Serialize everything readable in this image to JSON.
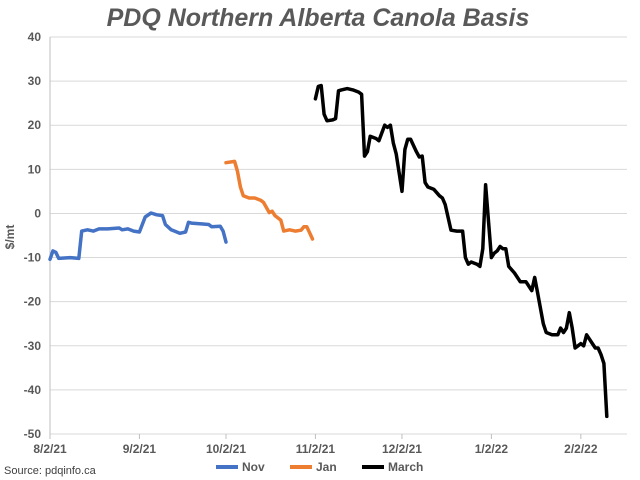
{
  "chart_data": {
    "type": "line",
    "title": "PDQ Northern Alberta Canola Basis",
    "ylabel": "$/mt",
    "xlabel": "",
    "ylim": [
      -50,
      40
    ],
    "yticks": [
      40,
      30,
      20,
      10,
      0,
      -10,
      -20,
      -30,
      -40,
      -50
    ],
    "xlim": [
      "2021-08-02",
      "2022-02-18"
    ],
    "xticks": [
      {
        "date": "2021-08-02",
        "label": "8/2/21"
      },
      {
        "date": "2021-09-02",
        "label": "9/2/21"
      },
      {
        "date": "2021-10-02",
        "label": "10/2/21"
      },
      {
        "date": "2021-11-02",
        "label": "11/2/21"
      },
      {
        "date": "2021-12-02",
        "label": "12/2/21"
      },
      {
        "date": "2022-01-02",
        "label": "1/2/22"
      },
      {
        "date": "2022-02-02",
        "label": "2/2/22"
      }
    ],
    "grid": true,
    "legend": "bottom",
    "source": "Source: pdqinfo.ca",
    "series": [
      {
        "name": "Nov",
        "color": "#4472c4",
        "points": [
          [
            "2021-08-02",
            -10.4
          ],
          [
            "2021-08-03",
            -8.5
          ],
          [
            "2021-08-04",
            -8.8
          ],
          [
            "2021-08-05",
            -10.2
          ],
          [
            "2021-08-09",
            -10.0
          ],
          [
            "2021-08-12",
            -10.2
          ],
          [
            "2021-08-13",
            -4.0
          ],
          [
            "2021-08-15",
            -3.7
          ],
          [
            "2021-08-17",
            -4.0
          ],
          [
            "2021-08-19",
            -3.5
          ],
          [
            "2021-08-22",
            -3.5
          ],
          [
            "2021-08-26",
            -3.3
          ],
          [
            "2021-08-27",
            -3.7
          ],
          [
            "2021-08-29",
            -3.5
          ],
          [
            "2021-08-31",
            -4.0
          ],
          [
            "2021-09-02",
            -4.2
          ],
          [
            "2021-09-04",
            -0.8
          ],
          [
            "2021-09-06",
            0.1
          ],
          [
            "2021-09-08",
            -0.3
          ],
          [
            "2021-09-10",
            -0.5
          ],
          [
            "2021-09-11",
            -2.5
          ],
          [
            "2021-09-13",
            -3.7
          ],
          [
            "2021-09-16",
            -4.5
          ],
          [
            "2021-09-18",
            -4.2
          ],
          [
            "2021-09-19",
            -2.0
          ],
          [
            "2021-09-20",
            -2.2
          ],
          [
            "2021-09-24",
            -2.4
          ],
          [
            "2021-09-26",
            -2.5
          ],
          [
            "2021-09-27",
            -3.0
          ],
          [
            "2021-09-30",
            -2.9
          ],
          [
            "2021-10-01",
            -4.0
          ],
          [
            "2021-10-02",
            -6.5
          ]
        ]
      },
      {
        "name": "Jan",
        "color": "#ed7d31",
        "points": [
          [
            "2021-10-02",
            11.5
          ],
          [
            "2021-10-05",
            11.8
          ],
          [
            "2021-10-06",
            9.5
          ],
          [
            "2021-10-07",
            6.0
          ],
          [
            "2021-10-08",
            4.0
          ],
          [
            "2021-10-10",
            3.5
          ],
          [
            "2021-10-12",
            3.5
          ],
          [
            "2021-10-14",
            3.0
          ],
          [
            "2021-10-15",
            2.5
          ],
          [
            "2021-10-17",
            0.2
          ],
          [
            "2021-10-18",
            0.5
          ],
          [
            "2021-10-19",
            -0.5
          ],
          [
            "2021-10-21",
            -1.5
          ],
          [
            "2021-10-22",
            -4.0
          ],
          [
            "2021-10-24",
            -3.7
          ],
          [
            "2021-10-26",
            -4.0
          ],
          [
            "2021-10-28",
            -3.8
          ],
          [
            "2021-10-29",
            -3.0
          ],
          [
            "2021-10-30",
            -3.0
          ],
          [
            "2021-11-01",
            -5.8
          ]
        ]
      },
      {
        "name": "March",
        "color": "#000000",
        "points": [
          [
            "2021-11-02",
            26.0
          ],
          [
            "2021-11-03",
            28.8
          ],
          [
            "2021-11-04",
            29.0
          ],
          [
            "2021-11-05",
            22.5
          ],
          [
            "2021-11-06",
            21.0
          ],
          [
            "2021-11-08",
            21.2
          ],
          [
            "2021-11-09",
            21.5
          ],
          [
            "2021-11-10",
            27.8
          ],
          [
            "2021-11-11",
            28.0
          ],
          [
            "2021-11-13",
            28.3
          ],
          [
            "2021-11-15",
            28.0
          ],
          [
            "2021-11-17",
            27.5
          ],
          [
            "2021-11-18",
            27.0
          ],
          [
            "2021-11-19",
            13.0
          ],
          [
            "2021-11-20",
            14.0
          ],
          [
            "2021-11-21",
            17.5
          ],
          [
            "2021-11-23",
            17.0
          ],
          [
            "2021-11-24",
            16.5
          ],
          [
            "2021-11-26",
            20.0
          ],
          [
            "2021-11-27",
            19.5
          ],
          [
            "2021-11-28",
            20.0
          ],
          [
            "2021-11-29",
            16.0
          ],
          [
            "2021-11-30",
            13.5
          ],
          [
            "2021-12-02",
            5.0
          ],
          [
            "2021-12-03",
            14.5
          ],
          [
            "2021-12-04",
            16.8
          ],
          [
            "2021-12-05",
            16.8
          ],
          [
            "2021-12-07",
            14.0
          ],
          [
            "2021-12-08",
            12.8
          ],
          [
            "2021-12-09",
            13.0
          ],
          [
            "2021-12-10",
            7.0
          ],
          [
            "2021-12-11",
            6.0
          ],
          [
            "2021-12-13",
            5.5
          ],
          [
            "2021-12-15",
            4.0
          ],
          [
            "2021-12-16",
            3.5
          ],
          [
            "2021-12-17",
            2.0
          ],
          [
            "2021-12-19",
            -3.8
          ],
          [
            "2021-12-21",
            -4.0
          ],
          [
            "2021-12-23",
            -4.0
          ],
          [
            "2021-12-24",
            -10.0
          ],
          [
            "2021-12-25",
            -11.5
          ],
          [
            "2021-12-26",
            -11.0
          ],
          [
            "2021-12-28",
            -11.5
          ],
          [
            "2021-12-29",
            -12.0
          ],
          [
            "2021-12-30",
            -8.0
          ],
          [
            "2021-12-31",
            6.5
          ],
          [
            "2022-01-02",
            -10.0
          ],
          [
            "2022-01-03",
            -9.0
          ],
          [
            "2022-01-04",
            -8.5
          ],
          [
            "2022-01-05",
            -7.5
          ],
          [
            "2022-01-06",
            -8.0
          ],
          [
            "2022-01-07",
            -8.0
          ],
          [
            "2022-01-08",
            -12.0
          ],
          [
            "2022-01-10",
            -13.5
          ],
          [
            "2022-01-12",
            -15.5
          ],
          [
            "2022-01-14",
            -15.5
          ],
          [
            "2022-01-16",
            -17.5
          ],
          [
            "2022-01-17",
            -14.5
          ],
          [
            "2022-01-18",
            -18.0
          ],
          [
            "2022-01-20",
            -25.0
          ],
          [
            "2022-01-21",
            -27.0
          ],
          [
            "2022-01-23",
            -27.5
          ],
          [
            "2022-01-25",
            -27.5
          ],
          [
            "2022-01-26",
            -26.0
          ],
          [
            "2022-01-27",
            -27.0
          ],
          [
            "2022-01-28",
            -26.0
          ],
          [
            "2022-01-29",
            -22.5
          ],
          [
            "2022-01-30",
            -26.0
          ],
          [
            "2022-01-31",
            -30.5
          ],
          [
            "2022-02-01",
            -30.0
          ],
          [
            "2022-02-02",
            -29.5
          ],
          [
            "2022-02-03",
            -30.0
          ],
          [
            "2022-02-04",
            -27.5
          ],
          [
            "2022-02-06",
            -29.5
          ],
          [
            "2022-02-07",
            -30.5
          ],
          [
            "2022-02-08",
            -30.5
          ],
          [
            "2022-02-09",
            -32.0
          ],
          [
            "2022-02-10",
            -34.0
          ],
          [
            "2022-02-11",
            -46.0
          ]
        ]
      }
    ]
  }
}
